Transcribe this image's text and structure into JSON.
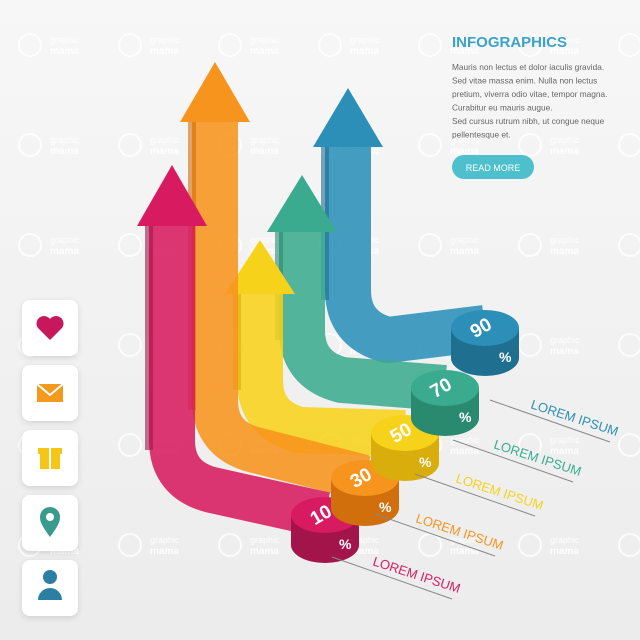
{
  "header": {
    "title": "INFOGRAPHICS",
    "paragraph": [
      "Mauris non lectus et dolor iaculis gravida.",
      "Sed vitae massa enim. Nulla non lectus",
      "pretium, viverra odio vitae, tempor magna.",
      "Curabitur eu mauris augue.",
      "Sed cursus rutrum nibh, ut congue neque",
      "pellentesque et."
    ],
    "button": "READ MORE"
  },
  "steps": [
    {
      "value": 10,
      "label": "LOREM IPSUM"
    },
    {
      "value": 30,
      "label": "LOREM IPSUM"
    },
    {
      "value": 50,
      "label": "LOREM IPSUM"
    },
    {
      "value": 70,
      "label": "LOREM IPSUM"
    },
    {
      "value": 90,
      "label": "LOREM IPSUM"
    }
  ],
  "percent_sign": "%",
  "watermark": {
    "top": "graphic",
    "bottom": "mama"
  }
}
